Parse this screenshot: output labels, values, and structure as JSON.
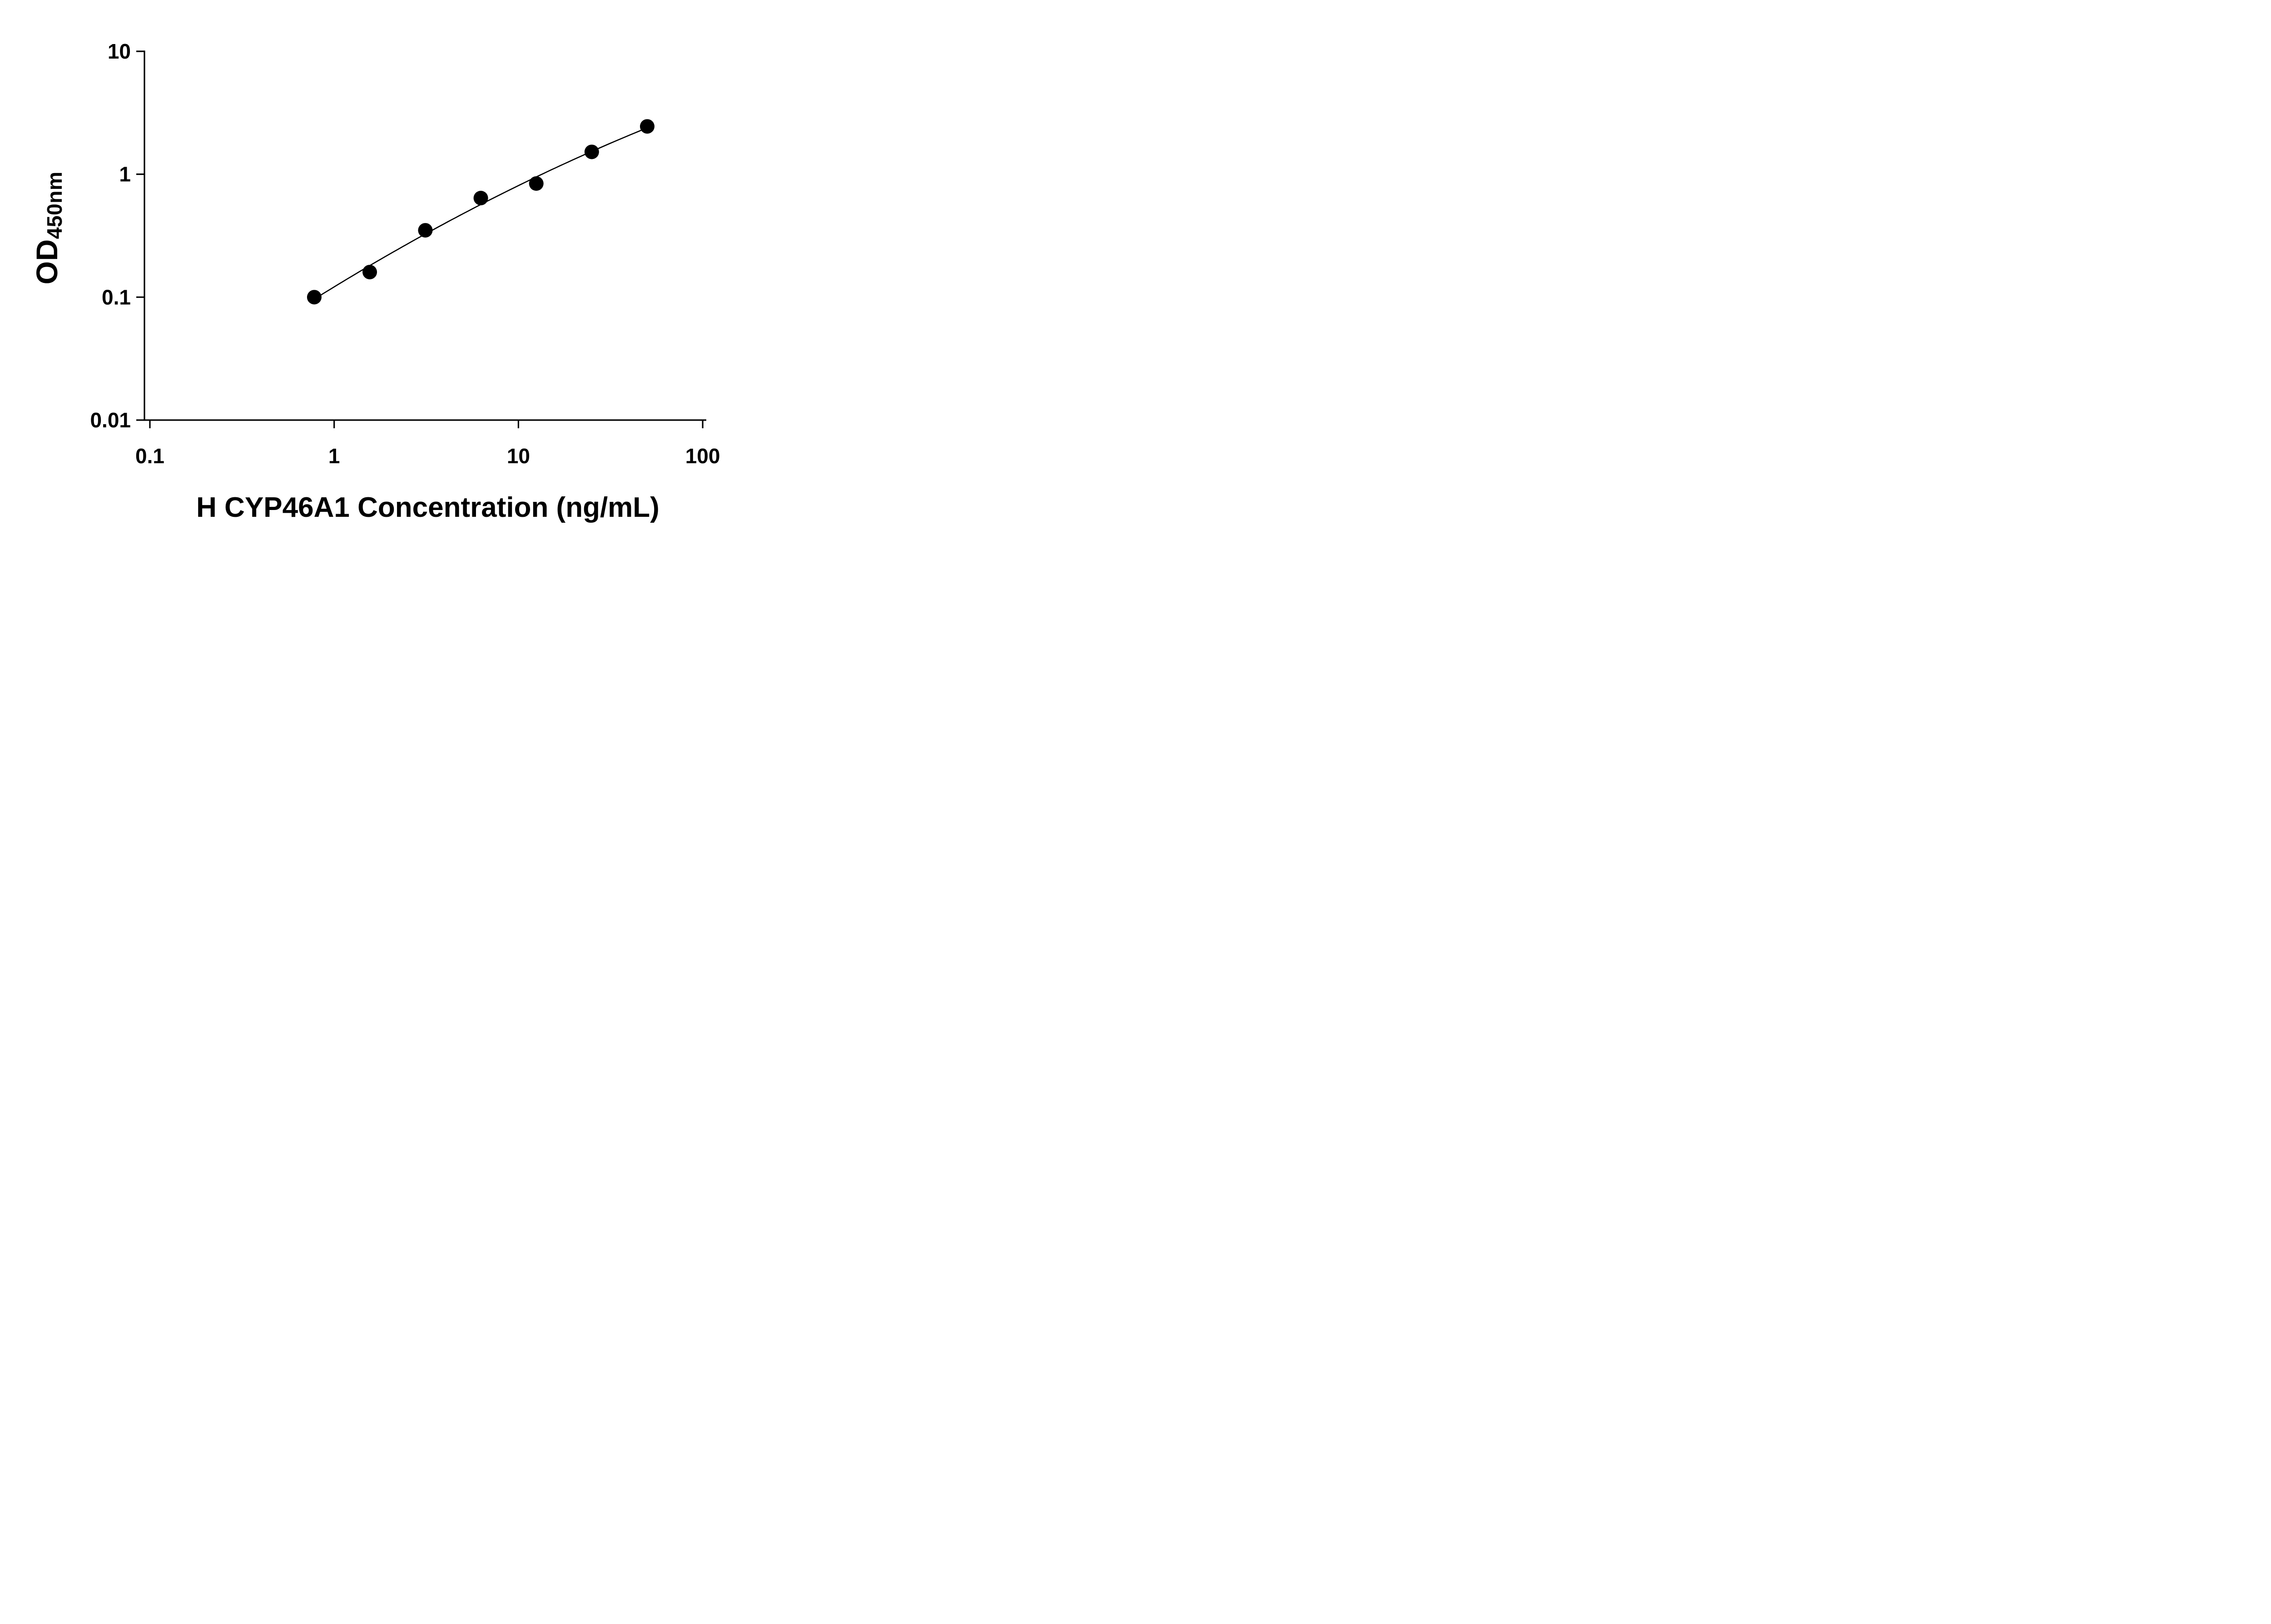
{
  "chart_data": {
    "type": "scatter",
    "title": "",
    "xlabel": "H CYP46A1 Concentration (ng/mL)",
    "ylabel": {
      "main": "OD",
      "sub": "450nm"
    },
    "x_scale": "log",
    "y_scale": "log",
    "xlim": [
      0.1,
      100
    ],
    "ylim": [
      0.01,
      10
    ],
    "x_ticks": [
      0.1,
      1,
      10,
      100
    ],
    "x_tick_labels": [
      "0.1",
      "1",
      "10",
      "100"
    ],
    "y_ticks": [
      0.01,
      0.1,
      1,
      10
    ],
    "y_tick_labels": [
      "0.01",
      "0.1",
      "1",
      "10"
    ],
    "grid": false,
    "legend": "none",
    "series": [
      {
        "marker": "filled-circle",
        "marker_color": "#000000",
        "line_color": "#000000",
        "fit": "quadratic-loglog",
        "points": [
          {
            "x": 0.78,
            "y": 0.1
          },
          {
            "x": 1.56,
            "y": 0.16
          },
          {
            "x": 3.125,
            "y": 0.35
          },
          {
            "x": 6.25,
            "y": 0.64
          },
          {
            "x": 12.5,
            "y": 0.84
          },
          {
            "x": 25,
            "y": 1.52
          },
          {
            "x": 50,
            "y": 2.45
          }
        ]
      }
    ],
    "colors": {
      "axis": "#000000",
      "background": "#ffffff"
    }
  }
}
